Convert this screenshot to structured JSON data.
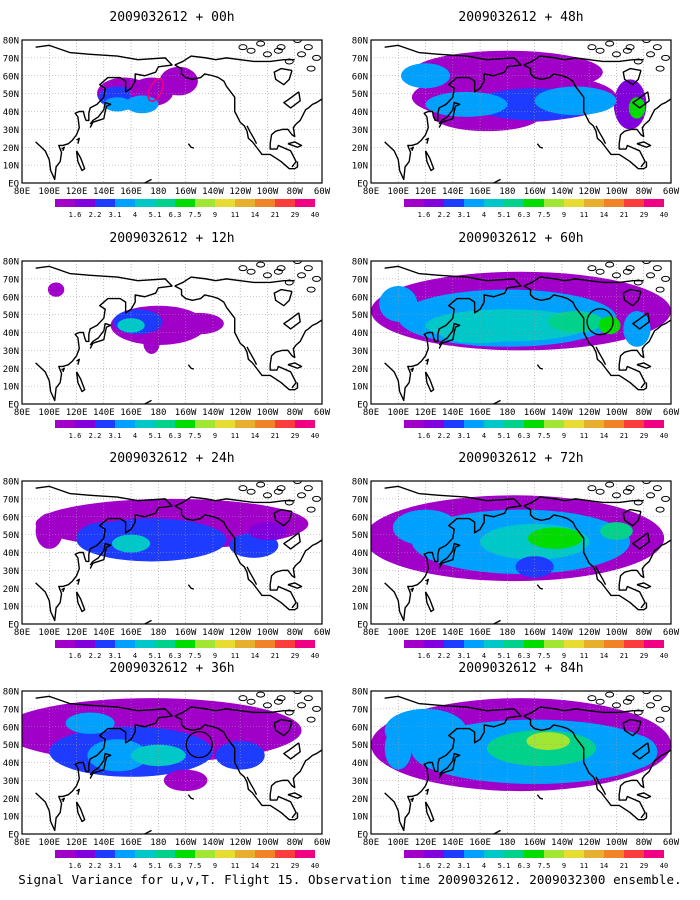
{
  "caption": "Signal Variance for u,v,T. Flight 15. Observation time 2009032612. 2009032300 ensemble.",
  "chart_data": {
    "type": "heatmap",
    "title_prefix": "2009032612 + ",
    "panels": [
      {
        "id": "00h",
        "title": "2009032612 + 00h"
      },
      {
        "id": "48h",
        "title": "2009032612 + 48h"
      },
      {
        "id": "12h",
        "title": "2009032612 + 12h"
      },
      {
        "id": "60h",
        "title": "2009032612 + 60h"
      },
      {
        "id": "24h",
        "title": "2009032612 + 24h"
      },
      {
        "id": "72h",
        "title": "2009032612 + 72h"
      },
      {
        "id": "36h",
        "title": "2009032612 + 36h"
      },
      {
        "id": "84h",
        "title": "2009032612 + 84h"
      }
    ],
    "x_tick_labels": [
      "80E",
      "100E",
      "120E",
      "140E",
      "160E",
      "180",
      "160W",
      "140W",
      "120W",
      "100W",
      "80W",
      "60W"
    ],
    "y_tick_labels": [
      "EQ",
      "10N",
      "20N",
      "30N",
      "40N",
      "50N",
      "60N",
      "70N",
      "80N"
    ],
    "xlim_deg_east": [
      80,
      300
    ],
    "ylim_deg_north": [
      0,
      80
    ],
    "grid": true,
    "colorbar": {
      "levels": [
        "1.6",
        "2.2",
        "3.1",
        "4",
        "5.1",
        "6.3",
        "7.5",
        "9",
        "11",
        "14",
        "21",
        "29",
        "40"
      ],
      "colors": [
        "#a000c8",
        "#8200dc",
        "#1e3cff",
        "#00a0ff",
        "#00c8c8",
        "#00d28c",
        "#00dc00",
        "#a0e632",
        "#e6dc32",
        "#e6af2d",
        "#f08228",
        "#fa3c3c",
        "#f00082"
      ]
    }
  }
}
